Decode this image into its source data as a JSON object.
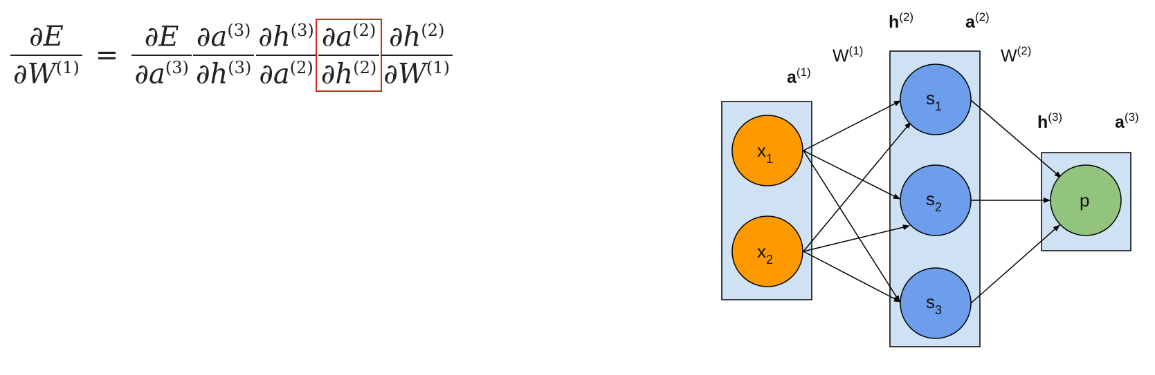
{
  "equation": {
    "lhs": {
      "num": "∂E",
      "den_base": "∂W",
      "den_sup": "(1)"
    },
    "equals": "=",
    "terms": [
      {
        "num_base": "∂E",
        "num_sup": "",
        "den_base": "∂a",
        "den_sup": "(3)"
      },
      {
        "num_base": "∂a",
        "num_sup": "(3)",
        "den_base": "∂h",
        "den_sup": "(3)"
      },
      {
        "num_base": "∂h",
        "num_sup": "(3)",
        "den_base": "∂a",
        "den_sup": "(2)"
      },
      {
        "num_base": "∂a",
        "num_sup": "(2)",
        "den_base": "∂h",
        "den_sup": "(2)",
        "highlighted": true
      },
      {
        "num_base": "∂h",
        "num_sup": "(2)",
        "den_base": "∂W",
        "den_sup": "(1)"
      }
    ],
    "highlight_color": "#e02020"
  },
  "diagram": {
    "colors": {
      "layer_box": "#cfe2f3",
      "input_node": "#ff9900",
      "hidden_node": "#6d9eeb",
      "output_node": "#93c47d",
      "edge": "#000000"
    },
    "input_nodes": [
      {
        "base": "x",
        "sub": "1"
      },
      {
        "base": "x",
        "sub": "2"
      }
    ],
    "hidden_nodes": [
      {
        "base": "s",
        "sub": "1"
      },
      {
        "base": "s",
        "sub": "2"
      },
      {
        "base": "s",
        "sub": "3"
      }
    ],
    "output_node": {
      "label": "p"
    },
    "layer_labels": {
      "a1": {
        "base": "a",
        "sup": "(1)"
      },
      "w1": {
        "base": "W",
        "sup": "(1)"
      },
      "h2": {
        "base": "h",
        "sup": "(2)"
      },
      "a2": {
        "base": "a",
        "sup": "(2)"
      },
      "w2": {
        "base": "W",
        "sup": "(2)"
      },
      "h3": {
        "base": "h",
        "sup": "(3)"
      },
      "a3": {
        "base": "a",
        "sup": "(3)"
      }
    }
  }
}
